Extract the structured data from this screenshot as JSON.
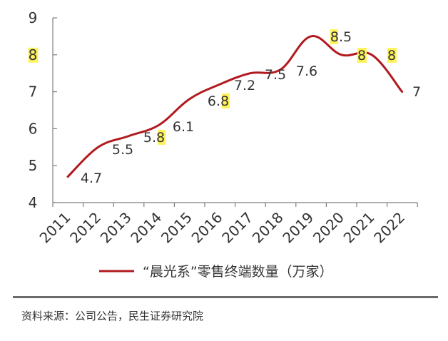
{
  "chart_data": {
    "type": "line",
    "x": [
      "2011",
      "2012",
      "2013",
      "2014",
      "2015",
      "2016",
      "2017",
      "2018",
      "2019",
      "2020",
      "2021",
      "2022"
    ],
    "series": [
      {
        "name": "“晨光系”零售终端数量（万家）",
        "color": "#b11a1e",
        "values": [
          4.7,
          5.5,
          5.8,
          6.1,
          6.8,
          7.2,
          7.5,
          7.6,
          8.5,
          8,
          8,
          7
        ],
        "labels": [
          "4.7",
          "5.5",
          "5.8",
          "6.1",
          "6.8",
          "7.2",
          "7.5",
          "7.6",
          "8.5",
          "8",
          "8",
          "7"
        ]
      }
    ],
    "ylim": [
      4,
      9
    ],
    "yticks": [
      "4",
      "5",
      "6",
      "7",
      "8",
      "9"
    ],
    "highlight_color": "#fff35c",
    "grid": false,
    "legend": "bottom",
    "smooth": true
  },
  "source": "资料来源：公司公告，民生证券研究院"
}
